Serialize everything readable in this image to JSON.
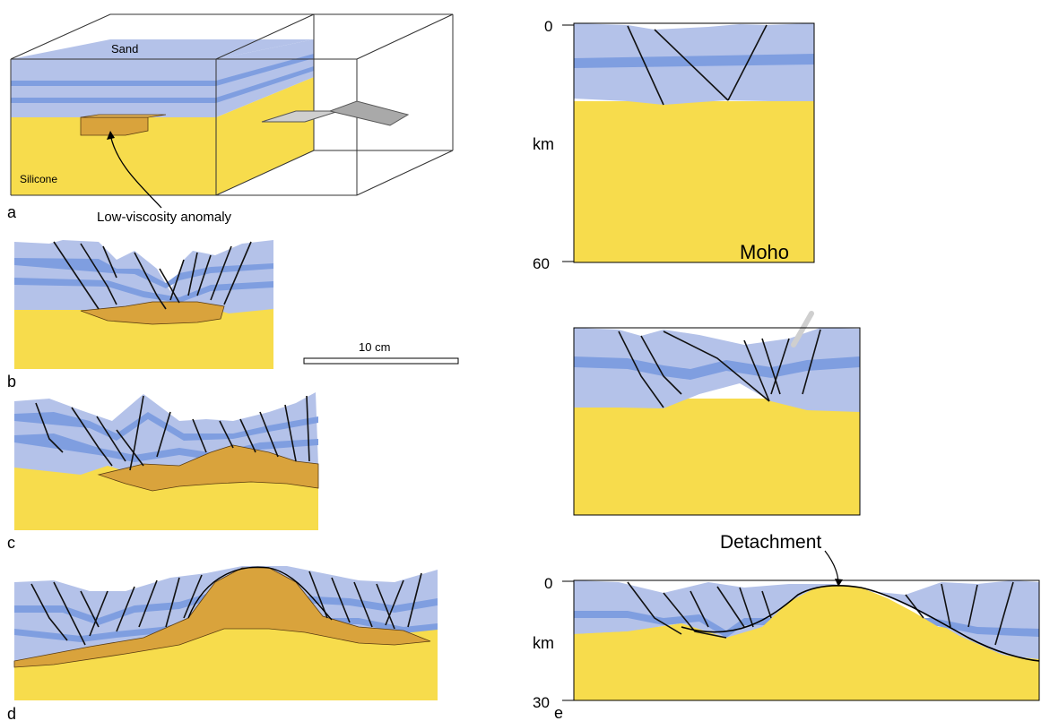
{
  "colors": {
    "sand": "#b4c2e9",
    "sand_band": "#7f9ee0",
    "silicone": "#f7dc4c",
    "anomaly": "#d9a33c",
    "fault": "#111111",
    "platform": "#b9b9b9"
  },
  "panel_a": {
    "letter": "a",
    "sand_label": "Sand",
    "silicone_label": "Silicone",
    "anomaly_label": "Low-viscosity anomaly"
  },
  "panel_b": {
    "letter": "b"
  },
  "panel_c": {
    "letter": "c"
  },
  "panel_d": {
    "letter": "d"
  },
  "panel_e": {
    "letter": "e",
    "detachment_label": "Detachment"
  },
  "scale_bar": {
    "label": "10 cm"
  },
  "section_top": {
    "depth_top": "0",
    "depth_unit": "km",
    "depth_bottom": "60",
    "moho_label": "Moho"
  },
  "section_bottom": {
    "depth_top": "0",
    "depth_unit": "km",
    "depth_bottom": "30"
  }
}
